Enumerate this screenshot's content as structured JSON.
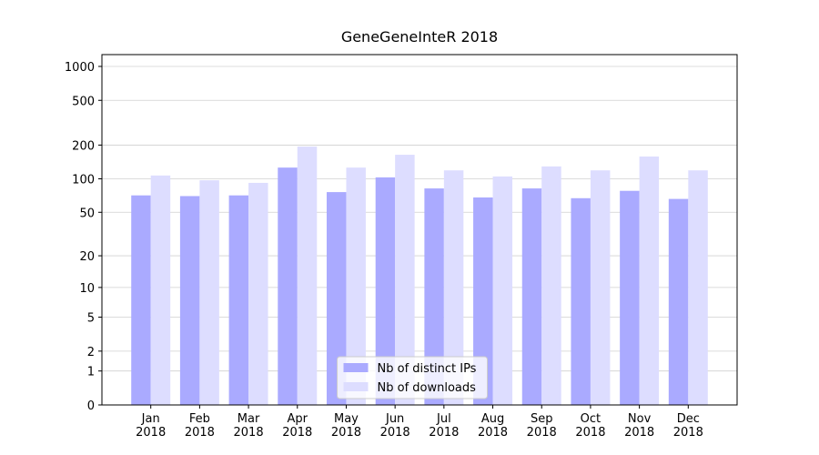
{
  "chart_data": {
    "type": "bar",
    "title": "GeneGeneInteR 2018",
    "categories": [
      "Jan\n2018",
      "Feb\n2018",
      "Mar\n2018",
      "Apr\n2018",
      "May\n2018",
      "Jun\n2018",
      "Jul\n2018",
      "Aug\n2018",
      "Sep\n2018",
      "Oct\n2018",
      "Nov\n2018",
      "Dec\n2018"
    ],
    "series": [
      {
        "name": "Nb of distinct IPs",
        "color": "#aaaaff",
        "values": [
          71,
          70,
          71,
          126,
          76,
          103,
          82,
          68,
          82,
          67,
          78,
          66
        ]
      },
      {
        "name": "Nb of downloads",
        "color": "#ddddff",
        "values": [
          107,
          97,
          92,
          194,
          126,
          164,
          119,
          105,
          129,
          119,
          158,
          119
        ]
      }
    ],
    "yscale": "log1p",
    "ylim": [
      0,
      1273
    ],
    "yticks": [
      0,
      1,
      2,
      5,
      10,
      20,
      50,
      100,
      200,
      500,
      1000
    ],
    "grid": true,
    "legend": "lower center"
  }
}
